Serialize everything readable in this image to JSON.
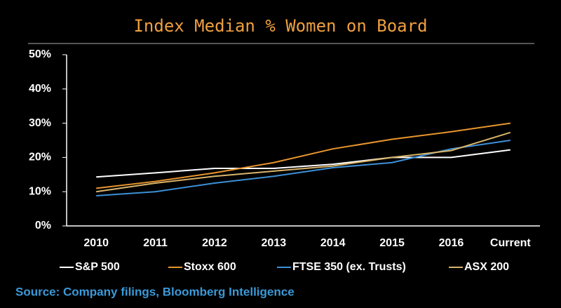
{
  "chart_data": {
    "type": "line",
    "title": "Index Median % Women on Board",
    "categories": [
      "2010",
      "2011",
      "2012",
      "2013",
      "2014",
      "2015",
      "2016",
      "Current"
    ],
    "series": [
      {
        "name": "S&P 500",
        "color": "#ffffff",
        "values": [
          14.3,
          15.5,
          16.8,
          16.8,
          18,
          20,
          20,
          22.2
        ]
      },
      {
        "name": "Stoxx 600",
        "color": "#e8952e",
        "values": [
          11,
          13,
          15.5,
          18.5,
          22.5,
          25.3,
          27.5,
          30
        ]
      },
      {
        "name": "FTSE 350 (ex. Trusts)",
        "color": "#3d8fd6",
        "values": [
          8.8,
          10,
          12.5,
          14.5,
          17,
          18.5,
          22.5,
          25
        ]
      },
      {
        "name": "ASX 200",
        "color": "#d9b46a",
        "values": [
          10,
          12.5,
          14.5,
          16,
          17.5,
          20,
          22,
          27.3
        ]
      }
    ],
    "ylim": [
      0,
      50
    ],
    "yticks": [
      {
        "value": 0,
        "label": "0%"
      },
      {
        "value": 10,
        "label": "10%"
      },
      {
        "value": 20,
        "label": "20%"
      },
      {
        "value": 30,
        "label": "30%"
      },
      {
        "value": 40,
        "label": "40%"
      },
      {
        "value": 50,
        "label": "50%"
      }
    ],
    "grid": false,
    "legend": "bottom",
    "source": "Source: Company filings, Bloomberg Intelligence"
  }
}
